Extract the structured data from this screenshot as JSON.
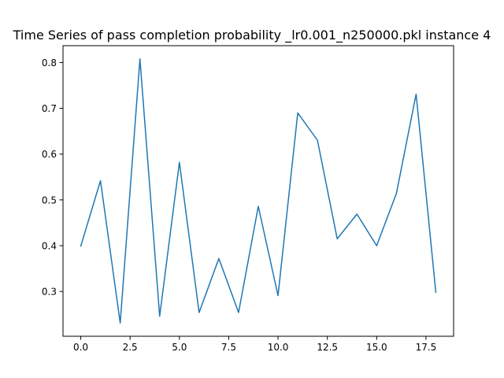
{
  "chart_data": {
    "type": "line",
    "title": "Time Series of pass completion probability _lr0.001_n250000.pkl instance 4",
    "xlabel": "",
    "ylabel": "",
    "x": [
      0,
      1,
      2,
      3,
      4,
      5,
      6,
      7,
      8,
      9,
      10,
      11,
      12,
      13,
      14,
      15,
      16,
      17,
      18
    ],
    "series": [
      {
        "values": [
          0.399,
          0.542,
          0.231,
          0.808,
          0.246,
          0.582,
          0.254,
          0.372,
          0.254,
          0.486,
          0.291,
          0.69,
          0.63,
          0.415,
          0.469,
          0.4,
          0.514,
          0.731,
          0.298
        ],
        "color": "#1f77b4"
      }
    ],
    "xlim": [
      -0.9,
      18.9
    ],
    "ylim": [
      0.2022,
      0.8368
    ],
    "xticks": [
      0.0,
      2.5,
      5.0,
      7.5,
      10.0,
      12.5,
      15.0,
      17.5
    ],
    "xtick_labels": [
      "0.0",
      "2.5",
      "5.0",
      "7.5",
      "10.0",
      "12.5",
      "15.0",
      "17.5"
    ],
    "yticks": [
      0.3,
      0.4,
      0.5,
      0.6,
      0.7,
      0.8
    ],
    "ytick_labels": [
      "0.3",
      "0.4",
      "0.5",
      "0.6",
      "0.7",
      "0.8"
    ],
    "grid": false,
    "legend": "none"
  }
}
